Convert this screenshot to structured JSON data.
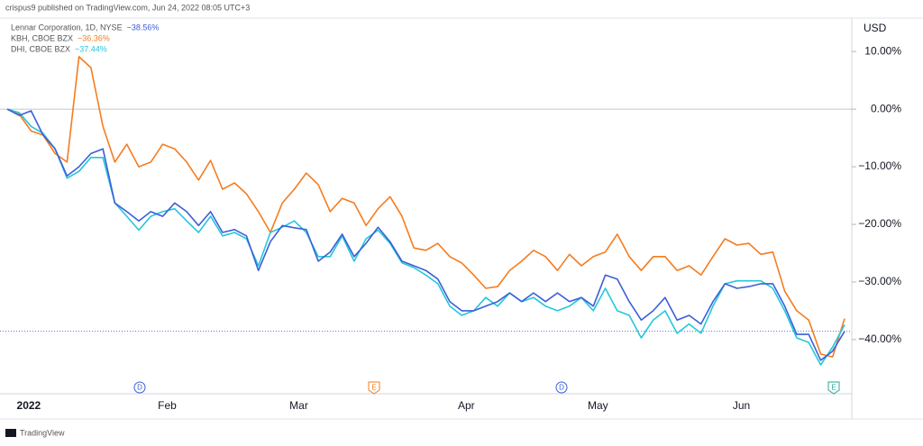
{
  "chart_data": {
    "type": "line",
    "title": "crispus9 published on TradingView.com, Jun 24, 2022 08:05 UTC+3",
    "y_axis_label": "USD",
    "footer": "TradingView",
    "categories": [
      null,
      null,
      "2022",
      null,
      null,
      null,
      null,
      null,
      null,
      null,
      null,
      null,
      null,
      "Feb",
      null,
      null,
      null,
      null,
      null,
      null,
      null,
      null,
      null,
      null,
      "Mar",
      null,
      null,
      null,
      null,
      null,
      null,
      null,
      null,
      null,
      null,
      null,
      null,
      null,
      "Apr",
      null,
      null,
      null,
      null,
      null,
      null,
      null,
      null,
      null,
      null,
      "May",
      null,
      null,
      null,
      null,
      null,
      null,
      null,
      null,
      null,
      null,
      null,
      "Jun",
      null,
      null,
      null,
      null,
      null,
      null,
      null,
      null,
      null
    ],
    "series": [
      {
        "name": "KBH, CBOE BZX",
        "last_label": "−36.36%",
        "color": "#f57c1f",
        "values": [
          0,
          -0.9,
          -3.8,
          -4.5,
          -7.7,
          -9.2,
          9.1,
          7.2,
          -3.0,
          -9.2,
          -6.1,
          -10.0,
          -9.2,
          -6.1,
          -6.9,
          -9.2,
          -12.3,
          -8.9,
          -13.9,
          -12.8,
          -14.7,
          -17.8,
          -21.4,
          -16.3,
          -13.9,
          -11.1,
          -13.1,
          -17.8,
          -15.5,
          -16.3,
          -20.2,
          -17.3,
          -15.2,
          -18.6,
          -24.1,
          -24.5,
          -23.3,
          -25.6,
          -26.7,
          -28.8,
          -31.1,
          -30.8,
          -28.0,
          -26.4,
          -24.5,
          -25.6,
          -28.0,
          -25.2,
          -27.2,
          -25.6,
          -24.8,
          -21.7,
          -25.6,
          -28.0,
          -25.6,
          -25.6,
          -28.0,
          -27.2,
          -28.8,
          -25.6,
          -22.5,
          -23.6,
          -23.3,
          -25.2,
          -24.8,
          -31.6,
          -35.0,
          -36.6,
          -42.5,
          -43.0,
          -36.36
        ]
      },
      {
        "name": "DHI, CBOE BZX",
        "last_label": "−37.44%",
        "color": "#26c6da",
        "values": [
          0,
          -0.6,
          -3.0,
          -4.2,
          -6.9,
          -12.0,
          -10.8,
          -8.4,
          -8.4,
          -16.3,
          -18.6,
          -21.0,
          -18.6,
          -17.8,
          -17.3,
          -19.4,
          -21.4,
          -18.6,
          -22.0,
          -21.4,
          -22.5,
          -27.2,
          -21.4,
          -20.5,
          -19.4,
          -21.4,
          -25.6,
          -25.6,
          -22.0,
          -26.4,
          -22.5,
          -21.0,
          -23.3,
          -26.7,
          -27.5,
          -28.8,
          -30.3,
          -34.2,
          -35.8,
          -35.0,
          -32.7,
          -34.2,
          -31.9,
          -33.4,
          -32.7,
          -34.2,
          -35.0,
          -34.2,
          -32.7,
          -35.0,
          -31.1,
          -35.0,
          -35.8,
          -39.7,
          -36.6,
          -35.0,
          -38.9,
          -37.3,
          -38.9,
          -34.2,
          -30.3,
          -29.8,
          -29.8,
          -29.8,
          -31.1,
          -35.0,
          -39.7,
          -40.5,
          -44.4,
          -41.3,
          -37.44
        ]
      },
      {
        "name": "Lennar Corporation, 1D, NYSE",
        "last_label": "−38.56%",
        "color": "#3a5fd9",
        "values": [
          0,
          -1.1,
          -0.3,
          -4.5,
          -6.9,
          -11.6,
          -10.0,
          -7.7,
          -6.9,
          -16.3,
          -17.8,
          -19.4,
          -17.8,
          -18.6,
          -16.3,
          -17.8,
          -20.2,
          -17.8,
          -21.4,
          -20.9,
          -22.0,
          -28.0,
          -23.0,
          -20.2,
          -20.6,
          -20.9,
          -26.4,
          -24.8,
          -21.7,
          -25.6,
          -23.3,
          -20.5,
          -23.0,
          -26.4,
          -27.2,
          -28.0,
          -29.5,
          -33.4,
          -35.0,
          -35.0,
          -34.2,
          -33.4,
          -31.9,
          -33.4,
          -31.9,
          -33.4,
          -31.9,
          -33.4,
          -32.7,
          -34.2,
          -28.8,
          -29.5,
          -33.4,
          -36.6,
          -35.0,
          -32.7,
          -36.6,
          -35.8,
          -37.3,
          -33.4,
          -30.3,
          -31.1,
          -30.8,
          -30.3,
          -30.3,
          -34.2,
          -39.1,
          -39.1,
          -43.6,
          -42.0,
          -38.56
        ]
      }
    ],
    "legend_order": [
      2,
      0,
      1
    ],
    "events": [
      {
        "label": "D",
        "color": "#3a5fd9"
      },
      {
        "label": "E",
        "color": "#f57c1f"
      },
      {
        "label": "D",
        "color": "#3a5fd9"
      },
      {
        "label": "E",
        "color": "#26a69a"
      }
    ],
    "ylim": [
      -49.4,
      15.5
    ],
    "yticks": [
      {
        "value": 10,
        "label": "10.00%"
      },
      {
        "value": 0,
        "label": "0.00%"
      },
      {
        "value": -10,
        "label": "−10.00%"
      },
      {
        "value": -20,
        "label": "−20.00%"
      },
      {
        "value": -30,
        "label": "−30.00%"
      },
      {
        "value": -40,
        "label": "−40.00%"
      }
    ],
    "grid": false
  }
}
